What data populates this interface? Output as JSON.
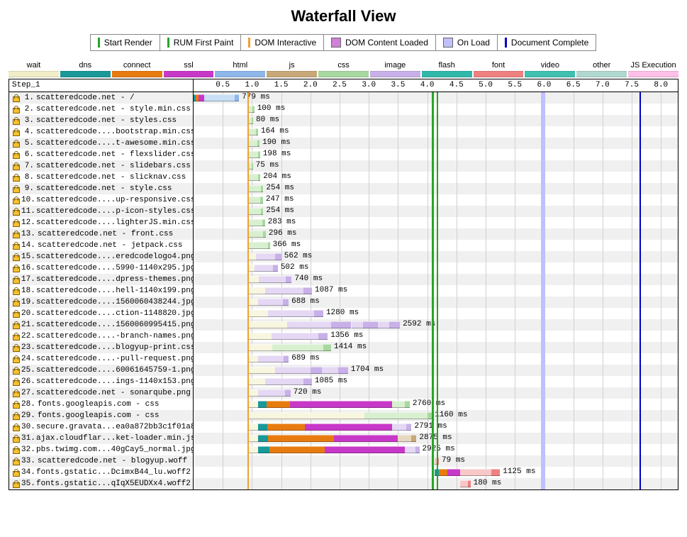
{
  "title": "Waterfall View",
  "event_legend": [
    {
      "label": "Start Render",
      "color": "#28a428",
      "width": 3
    },
    {
      "label": "RUM First Paint",
      "color": "#28a428",
      "width": 3
    },
    {
      "label": "DOM Interactive",
      "color": "#f0a030",
      "width": 3
    },
    {
      "label": "DOM Content Loaded",
      "color": "#d080d8",
      "width": 14,
      "box": true
    },
    {
      "label": "On Load",
      "color": "#c0c0ff",
      "width": 14,
      "box": true
    },
    {
      "label": "Document Complete",
      "color": "#0000c0",
      "width": 3
    }
  ],
  "type_legend": [
    {
      "label": "wait",
      "color": "#f0eec8"
    },
    {
      "label": "dns",
      "color": "#1a9999"
    },
    {
      "label": "connect",
      "color": "#e87b10"
    },
    {
      "label": "ssl",
      "color": "#c838c8"
    },
    {
      "label": "html",
      "color": "#8db7e8"
    },
    {
      "label": "js",
      "color": "#c8a878"
    },
    {
      "label": "css",
      "color": "#a8d8a0"
    },
    {
      "label": "image",
      "color": "#c8b0e8"
    },
    {
      "label": "flash",
      "color": "#30b8a8"
    },
    {
      "label": "font",
      "color": "#f08080"
    },
    {
      "label": "video",
      "color": "#40c0b0"
    },
    {
      "label": "other",
      "color": "#b0d8d0"
    },
    {
      "label": "JS Execution",
      "color": "#ffc0e8"
    }
  ],
  "colors": {
    "wait": "#f0eec8",
    "wait_light": "#f8f6e0",
    "dns": "#1a9999",
    "connect": "#e87b10",
    "ssl": "#c838c8",
    "html_wait": "#c8dff5",
    "html": "#8db7e8",
    "css_wait": "#d8f0d0",
    "css": "#a8d8a0",
    "image_wait": "#e4d8f4",
    "image": "#c8b0e8",
    "font_wait": "#f8c8c8",
    "font": "#f08080",
    "js_wait": "#e8d8c0",
    "js": "#c8a878"
  },
  "axis": {
    "max_ms": 8300,
    "tick_step": 500,
    "ticks": [
      "0.5",
      "1.0",
      "1.5",
      "2.0",
      "2.5",
      "3.0",
      "3.5",
      "4.0",
      "4.5",
      "5.0",
      "5.5",
      "6.0",
      "6.5",
      "7.0",
      "7.5",
      "8.0"
    ]
  },
  "step_label": "Step_1",
  "event_lines": [
    {
      "at": 940,
      "color": "#f0a030",
      "width": 2
    },
    {
      "at": 4100,
      "color": "#28a428",
      "width": 3
    },
    {
      "at": 4180,
      "color": "#28a428",
      "width": 2
    },
    {
      "at": 5980,
      "color": "#c0c0ff",
      "width": 6
    },
    {
      "at": 7650,
      "color": "#0000c0",
      "width": 2
    }
  ],
  "rows": [
    {
      "n": 1,
      "label": "scatteredcode.net - /",
      "ms": "779 ms",
      "segs": [
        {
          "t": "dns",
          "s": 0,
          "e": 40
        },
        {
          "t": "connect",
          "s": 40,
          "e": 90
        },
        {
          "t": "ssl",
          "s": 90,
          "e": 185
        },
        {
          "t": "html_wait",
          "s": 185,
          "e": 700
        },
        {
          "t": "html",
          "s": 700,
          "e": 779
        }
      ]
    },
    {
      "n": 2,
      "label": "scatteredcode.net - style.min.css",
      "ms": "100 ms",
      "segs": [
        {
          "t": "css_wait",
          "s": 940,
          "e": 1010
        },
        {
          "t": "css",
          "s": 1010,
          "e": 1040
        }
      ]
    },
    {
      "n": 3,
      "label": "scatteredcode.net - styles.css",
      "ms": "80 ms",
      "segs": [
        {
          "t": "css_wait",
          "s": 940,
          "e": 1000
        },
        {
          "t": "css",
          "s": 1000,
          "e": 1020
        }
      ]
    },
    {
      "n": 4,
      "label": "scatteredcode....bootstrap.min.css",
      "ms": "164 ms",
      "segs": [
        {
          "t": "css_wait",
          "s": 940,
          "e": 1070
        },
        {
          "t": "css",
          "s": 1070,
          "e": 1104
        }
      ]
    },
    {
      "n": 5,
      "label": "scatteredcode....t-awesome.min.css",
      "ms": "190 ms",
      "segs": [
        {
          "t": "css_wait",
          "s": 940,
          "e": 1090
        },
        {
          "t": "css",
          "s": 1090,
          "e": 1130
        }
      ]
    },
    {
      "n": 6,
      "label": "scatteredcode.net - flexslider.css",
      "ms": "198 ms",
      "segs": [
        {
          "t": "css_wait",
          "s": 940,
          "e": 1100
        },
        {
          "t": "css",
          "s": 1100,
          "e": 1138
        }
      ]
    },
    {
      "n": 7,
      "label": "scatteredcode.net - slidebars.css",
      "ms": "75 ms",
      "segs": [
        {
          "t": "css_wait",
          "s": 940,
          "e": 1000
        },
        {
          "t": "css",
          "s": 1000,
          "e": 1015
        }
      ]
    },
    {
      "n": 8,
      "label": "scatteredcode.net - slicknav.css",
      "ms": "204 ms",
      "segs": [
        {
          "t": "css_wait",
          "s": 940,
          "e": 1110
        },
        {
          "t": "css",
          "s": 1110,
          "e": 1144
        }
      ]
    },
    {
      "n": 9,
      "label": "scatteredcode.net - style.css",
      "ms": "254 ms",
      "segs": [
        {
          "t": "css_wait",
          "s": 940,
          "e": 1150
        },
        {
          "t": "css",
          "s": 1150,
          "e": 1194
        }
      ]
    },
    {
      "n": 10,
      "label": "scatteredcode....up-responsive.css",
      "ms": "247 ms",
      "segs": [
        {
          "t": "css_wait",
          "s": 940,
          "e": 1145
        },
        {
          "t": "css",
          "s": 1145,
          "e": 1187
        }
      ]
    },
    {
      "n": 11,
      "label": "scatteredcode....p-icon-styles.css",
      "ms": "254 ms",
      "segs": [
        {
          "t": "css_wait",
          "s": 940,
          "e": 1150
        },
        {
          "t": "css",
          "s": 1150,
          "e": 1194
        }
      ]
    },
    {
      "n": 12,
      "label": "scatteredcode....lighterJS.min.css",
      "ms": "283 ms",
      "segs": [
        {
          "t": "css_wait",
          "s": 940,
          "e": 1180
        },
        {
          "t": "css",
          "s": 1180,
          "e": 1223
        }
      ]
    },
    {
      "n": 13,
      "label": "scatteredcode.net - front.css",
      "ms": "296 ms",
      "segs": [
        {
          "t": "css_wait",
          "s": 940,
          "e": 1190
        },
        {
          "t": "css",
          "s": 1190,
          "e": 1236
        }
      ]
    },
    {
      "n": 14,
      "label": "scatteredcode.net - jetpack.css",
      "ms": "366 ms",
      "segs": [
        {
          "t": "css_wait",
          "s": 940,
          "e": 1270
        },
        {
          "t": "css",
          "s": 1270,
          "e": 1306
        }
      ]
    },
    {
      "n": 15,
      "label": "scatteredcode....eredcodelogo4.png",
      "ms": "562 ms",
      "segs": [
        {
          "t": "wait_light",
          "s": 940,
          "e": 1070
        },
        {
          "t": "image_wait",
          "s": 1070,
          "e": 1400
        },
        {
          "t": "image",
          "s": 1400,
          "e": 1502
        }
      ]
    },
    {
      "n": 16,
      "label": "scatteredcode....5990-1140x295.jpg",
      "ms": "502 ms",
      "segs": [
        {
          "t": "wait_light",
          "s": 940,
          "e": 1040
        },
        {
          "t": "image_wait",
          "s": 1040,
          "e": 1360
        },
        {
          "t": "image",
          "s": 1360,
          "e": 1442
        }
      ]
    },
    {
      "n": 17,
      "label": "scatteredcode....dpress-themes.png",
      "ms": "740 ms",
      "segs": [
        {
          "t": "wait_light",
          "s": 940,
          "e": 1120
        },
        {
          "t": "image_wait",
          "s": 1120,
          "e": 1580
        },
        {
          "t": "image",
          "s": 1580,
          "e": 1680
        }
      ]
    },
    {
      "n": 18,
      "label": "scatteredcode....hell-1140x199.png",
      "ms": "1087 ms",
      "segs": [
        {
          "t": "wait_light",
          "s": 940,
          "e": 1220
        },
        {
          "t": "image_wait",
          "s": 1220,
          "e": 1880
        },
        {
          "t": "image",
          "s": 1880,
          "e": 2027
        }
      ]
    },
    {
      "n": 19,
      "label": "scatteredcode....1560060438244.jpg",
      "ms": "688 ms",
      "segs": [
        {
          "t": "wait_light",
          "s": 940,
          "e": 1100
        },
        {
          "t": "image_wait",
          "s": 1100,
          "e": 1530
        },
        {
          "t": "image",
          "s": 1530,
          "e": 1628
        }
      ]
    },
    {
      "n": 20,
      "label": "scatteredcode....ction-1148820.jpg",
      "ms": "1280 ms",
      "segs": [
        {
          "t": "wait_light",
          "s": 940,
          "e": 1280
        },
        {
          "t": "image_wait",
          "s": 1280,
          "e": 2060
        },
        {
          "t": "image",
          "s": 2060,
          "e": 2220
        }
      ]
    },
    {
      "n": 21,
      "label": "scatteredcode....1560060995415.png",
      "ms": "2592 ms",
      "segs": [
        {
          "t": "wait_light",
          "s": 940,
          "e": 1600
        },
        {
          "t": "image_wait",
          "s": 1600,
          "e": 2350
        },
        {
          "t": "image",
          "s": 2350,
          "e": 2700
        },
        {
          "t": "image_wait",
          "s": 2700,
          "e": 2900
        },
        {
          "t": "image",
          "s": 2900,
          "e": 3150
        },
        {
          "t": "image_wait",
          "s": 3150,
          "e": 3350
        },
        {
          "t": "image",
          "s": 3350,
          "e": 3532
        }
      ]
    },
    {
      "n": 22,
      "label": "scatteredcode....-branch-names.png",
      "ms": "1356 ms",
      "segs": [
        {
          "t": "wait_light",
          "s": 940,
          "e": 1330
        },
        {
          "t": "image_wait",
          "s": 1330,
          "e": 2130
        },
        {
          "t": "image",
          "s": 2130,
          "e": 2296
        }
      ]
    },
    {
      "n": 23,
      "label": "scatteredcode....blogyup-print.css",
      "ms": "1414 ms",
      "segs": [
        {
          "t": "wait_light",
          "s": 940,
          "e": 1350
        },
        {
          "t": "css_wait",
          "s": 1350,
          "e": 2220
        },
        {
          "t": "css",
          "s": 2220,
          "e": 2354
        }
      ]
    },
    {
      "n": 24,
      "label": "scatteredcode....-pull-request.png",
      "ms": "689 ms",
      "segs": [
        {
          "t": "wait_light",
          "s": 940,
          "e": 1100
        },
        {
          "t": "image_wait",
          "s": 1100,
          "e": 1540
        },
        {
          "t": "image",
          "s": 1540,
          "e": 1629
        }
      ]
    },
    {
      "n": 25,
      "label": "scatteredcode....60061645759-1.png",
      "ms": "1704 ms",
      "segs": [
        {
          "t": "wait_light",
          "s": 940,
          "e": 1400
        },
        {
          "t": "image_wait",
          "s": 1400,
          "e": 2000
        },
        {
          "t": "image",
          "s": 2000,
          "e": 2200
        },
        {
          "t": "image_wait",
          "s": 2200,
          "e": 2480
        },
        {
          "t": "image",
          "s": 2480,
          "e": 2644
        }
      ]
    },
    {
      "n": 26,
      "label": "scatteredcode....ings-1140x153.png",
      "ms": "1085 ms",
      "segs": [
        {
          "t": "wait_light",
          "s": 940,
          "e": 1220
        },
        {
          "t": "image_wait",
          "s": 1220,
          "e": 1880
        },
        {
          "t": "image",
          "s": 1880,
          "e": 2025
        }
      ]
    },
    {
      "n": 27,
      "label": "scatteredcode.net - sonarqube.png",
      "ms": "720 ms",
      "segs": [
        {
          "t": "wait_light",
          "s": 940,
          "e": 1110
        },
        {
          "t": "image_wait",
          "s": 1110,
          "e": 1560
        },
        {
          "t": "image",
          "s": 1560,
          "e": 1660
        }
      ]
    },
    {
      "n": 28,
      "label": "fonts.googleapis.com - css",
      "ms": "2760 ms",
      "segs": [
        {
          "t": "wait_light",
          "s": 940,
          "e": 1100
        },
        {
          "t": "dns",
          "s": 1100,
          "e": 1250
        },
        {
          "t": "connect",
          "s": 1250,
          "e": 1650
        },
        {
          "t": "ssl",
          "s": 1650,
          "e": 3400
        },
        {
          "t": "css_wait",
          "s": 3400,
          "e": 3620
        },
        {
          "t": "css",
          "s": 3620,
          "e": 3700
        }
      ]
    },
    {
      "n": 29,
      "label": "fonts.googleapis.com - css",
      "ms": "1160 ms",
      "segs": [
        {
          "t": "wait_light",
          "s": 940,
          "e": 2920
        },
        {
          "t": "css_wait",
          "s": 2920,
          "e": 4000
        },
        {
          "t": "css",
          "s": 4000,
          "e": 4080
        }
      ]
    },
    {
      "n": 30,
      "label": "secure.gravata...ea0a872bb3c1f01a8",
      "ms": "2791 ms",
      "segs": [
        {
          "t": "wait_light",
          "s": 940,
          "e": 1100
        },
        {
          "t": "dns",
          "s": 1100,
          "e": 1260
        },
        {
          "t": "connect",
          "s": 1260,
          "e": 1900
        },
        {
          "t": "ssl",
          "s": 1900,
          "e": 3400
        },
        {
          "t": "image_wait",
          "s": 3400,
          "e": 3640
        },
        {
          "t": "image",
          "s": 3640,
          "e": 3731
        }
      ]
    },
    {
      "n": 31,
      "label": "ajax.cloudflar...ket-loader.min.js",
      "ms": "2875 ms",
      "segs": [
        {
          "t": "wait_light",
          "s": 940,
          "e": 1100
        },
        {
          "t": "dns",
          "s": 1100,
          "e": 1280
        },
        {
          "t": "connect",
          "s": 1280,
          "e": 2400
        },
        {
          "t": "ssl",
          "s": 2400,
          "e": 3500
        },
        {
          "t": "js_wait",
          "s": 3500,
          "e": 3720
        },
        {
          "t": "js",
          "s": 3720,
          "e": 3815
        }
      ]
    },
    {
      "n": 32,
      "label": "pbs.twimg.com...40gCay5_normal.jpg",
      "ms": "2925 ms",
      "segs": [
        {
          "t": "wait_light",
          "s": 940,
          "e": 1100
        },
        {
          "t": "dns",
          "s": 1100,
          "e": 1300
        },
        {
          "t": "connect",
          "s": 1300,
          "e": 2250
        },
        {
          "t": "ssl",
          "s": 2250,
          "e": 3620
        },
        {
          "t": "image_wait",
          "s": 3620,
          "e": 3800
        },
        {
          "t": "image",
          "s": 3800,
          "e": 3865
        }
      ]
    },
    {
      "n": 33,
      "label": "scatteredcode.net - blogyup.woff",
      "ms": "79 ms",
      "segs": [
        {
          "t": "font_wait",
          "s": 4120,
          "e": 4180
        },
        {
          "t": "font",
          "s": 4180,
          "e": 4199
        }
      ]
    },
    {
      "n": 34,
      "label": "fonts.gstatic...DcimxB44_lu.woff2",
      "ms": "1125 ms",
      "segs": [
        {
          "t": "dns",
          "s": 4120,
          "e": 4200
        },
        {
          "t": "connect",
          "s": 4200,
          "e": 4350
        },
        {
          "t": "ssl",
          "s": 4350,
          "e": 4560
        },
        {
          "t": "font_wait",
          "s": 4560,
          "e": 5100
        },
        {
          "t": "font",
          "s": 5100,
          "e": 5245
        }
      ]
    },
    {
      "n": 35,
      "label": "fonts.gstatic...qIqX5EUDXx4.woff2",
      "ms": "180 ms",
      "segs": [
        {
          "t": "font_wait",
          "s": 4560,
          "e": 4700
        },
        {
          "t": "font",
          "s": 4700,
          "e": 4740
        }
      ]
    }
  ]
}
